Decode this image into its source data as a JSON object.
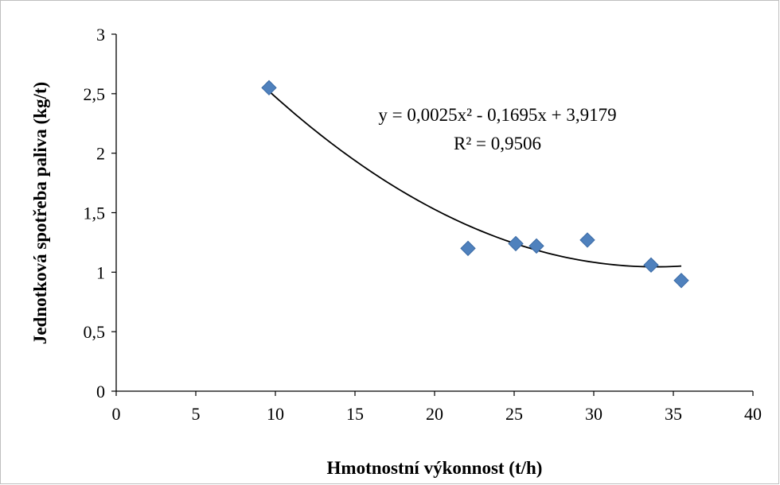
{
  "chart_data": {
    "type": "scatter",
    "xlabel": "Hmotnostní výkonnost (t/h)",
    "ylabel": "Jednotková spotřeba paliva (kg/t)",
    "xlim": [
      0,
      40
    ],
    "ylim": [
      0,
      3
    ],
    "x_ticks": [
      "0",
      "5",
      "10",
      "15",
      "20",
      "25",
      "30",
      "35",
      "40"
    ],
    "y_ticks": [
      "0",
      "0,5",
      "1",
      "1,5",
      "2",
      "2,5",
      "3"
    ],
    "points": [
      {
        "x": 9.6,
        "y": 2.55
      },
      {
        "x": 22.1,
        "y": 1.2
      },
      {
        "x": 25.1,
        "y": 1.24
      },
      {
        "x": 26.4,
        "y": 1.22
      },
      {
        "x": 29.6,
        "y": 1.27
      },
      {
        "x": 33.6,
        "y": 1.06
      },
      {
        "x": 35.5,
        "y": 0.93
      }
    ],
    "trendline": {
      "type": "polynomial",
      "coefficients": [
        0.0025,
        -0.1695,
        3.9179
      ],
      "x_range": [
        9.6,
        35.5
      ],
      "equation": "y = 0,0025x² - 0,1695x + 3,9179",
      "r2": "R² = 0,9506"
    },
    "marker_color": "#4f81bd",
    "marker_edge_color": "#3a6aa5",
    "line_color": "#000000",
    "grid": false,
    "legend": "none"
  }
}
